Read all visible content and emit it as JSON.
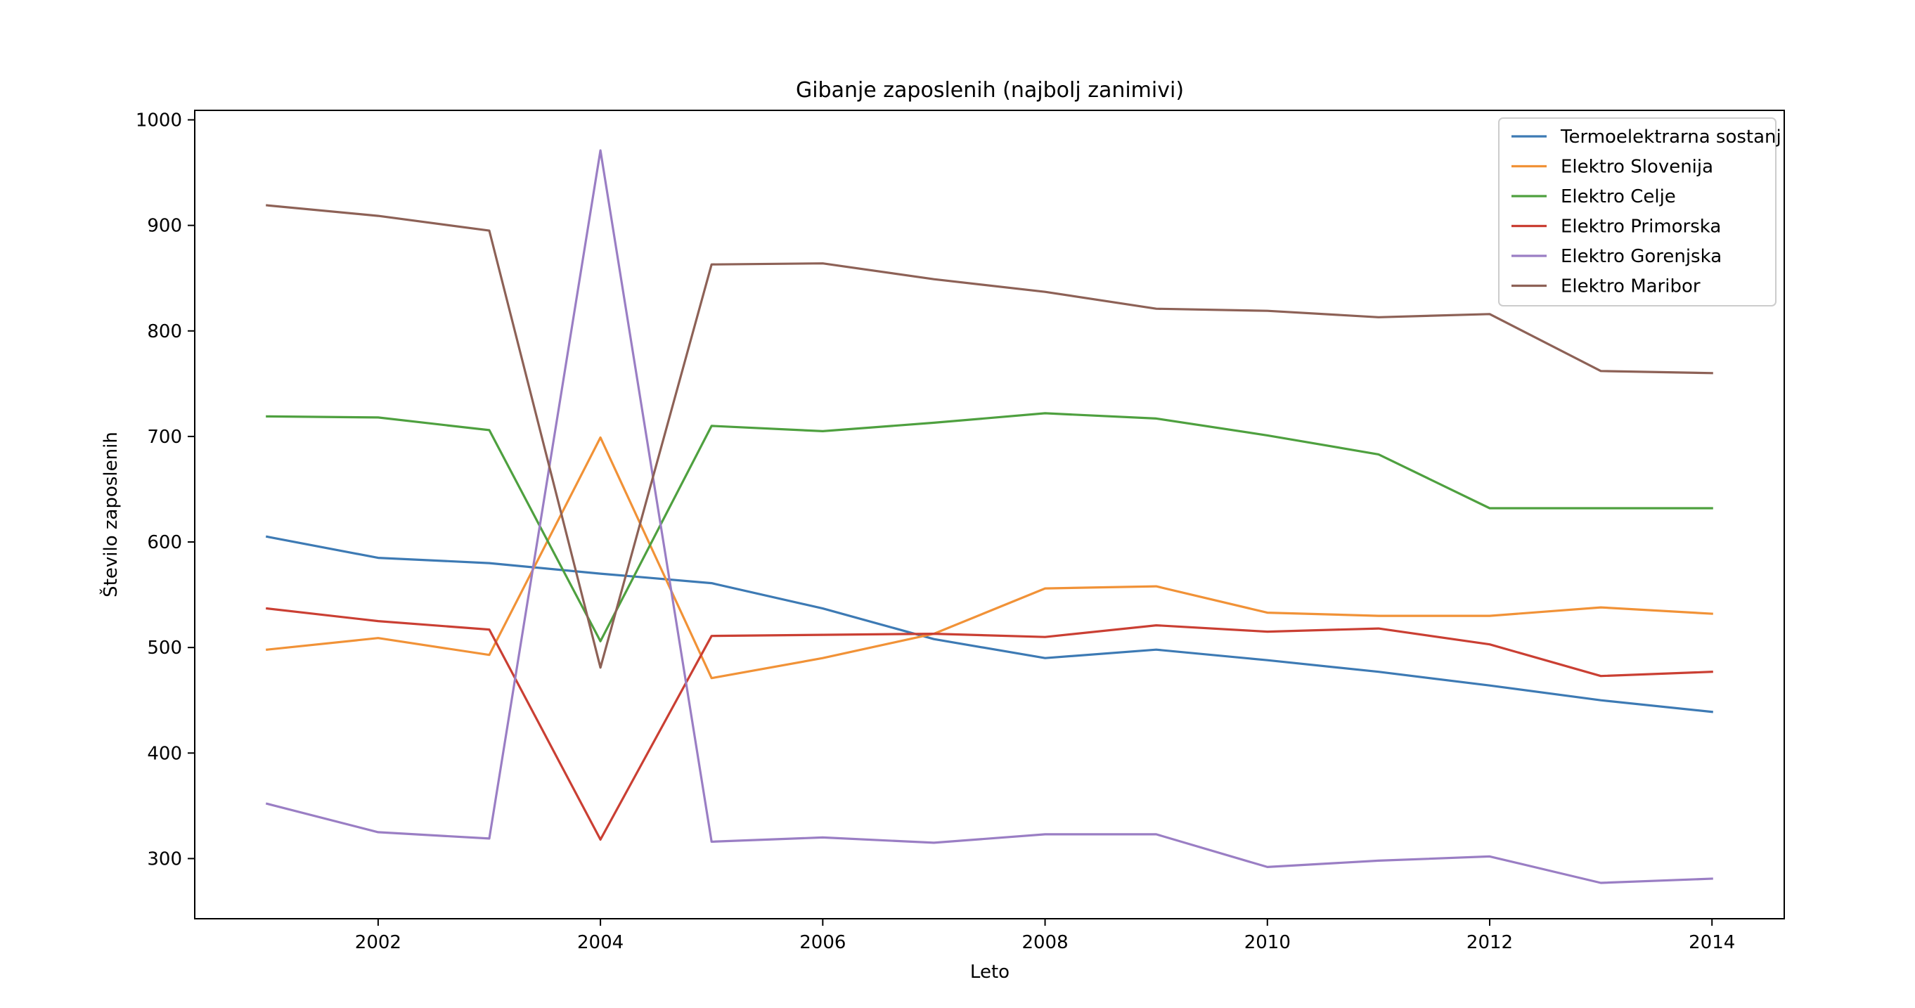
{
  "chart_data": {
    "type": "line",
    "title": "Gibanje zaposlenih (najbolj zanimivi)",
    "xlabel": "Leto",
    "ylabel": "Število zaposlenih",
    "x": [
      2001,
      2002,
      2003,
      2004,
      2005,
      2006,
      2007,
      2008,
      2009,
      2010,
      2011,
      2012,
      2013,
      2014
    ],
    "xlim": [
      2000.35,
      2014.65
    ],
    "ylim": [
      243,
      1009
    ],
    "xticks": [
      "2002",
      "2004",
      "2006",
      "2008",
      "2010",
      "2012",
      "2014"
    ],
    "yticks": [
      "300",
      "400",
      "500",
      "600",
      "700",
      "800",
      "900",
      "1000"
    ],
    "grid": false,
    "legend_position": "top-right",
    "series": [
      {
        "name": "Termoelektrarna sostanj",
        "color": "#3d7ab4",
        "values": [
          605,
          585,
          580,
          570,
          561,
          537,
          508,
          490,
          498,
          488,
          477,
          464,
          450,
          439
        ]
      },
      {
        "name": "Elektro Slovenija",
        "color": "#f19237",
        "values": [
          498,
          509,
          493,
          699,
          471,
          490,
          513,
          556,
          558,
          533,
          530,
          530,
          538,
          532
        ]
      },
      {
        "name": "Elektro Celje",
        "color": "#4ea03f",
        "values": [
          719,
          718,
          706,
          506,
          710,
          705,
          713,
          722,
          717,
          701,
          683,
          632,
          632,
          632
        ]
      },
      {
        "name": "Elektro Primorska",
        "color": "#ca3f33",
        "values": [
          537,
          525,
          517,
          318,
          511,
          512,
          513,
          510,
          521,
          515,
          518,
          503,
          473,
          477
        ]
      },
      {
        "name": "Elektro Gorenjska",
        "color": "#9a7ec4",
        "values": [
          352,
          325,
          319,
          971,
          316,
          320,
          315,
          323,
          323,
          292,
          298,
          302,
          277,
          281
        ]
      },
      {
        "name": "Elektro Maribor",
        "color": "#8d6156",
        "values": [
          919,
          909,
          895,
          481,
          863,
          864,
          849,
          837,
          821,
          819,
          813,
          816,
          762,
          760
        ]
      }
    ]
  }
}
